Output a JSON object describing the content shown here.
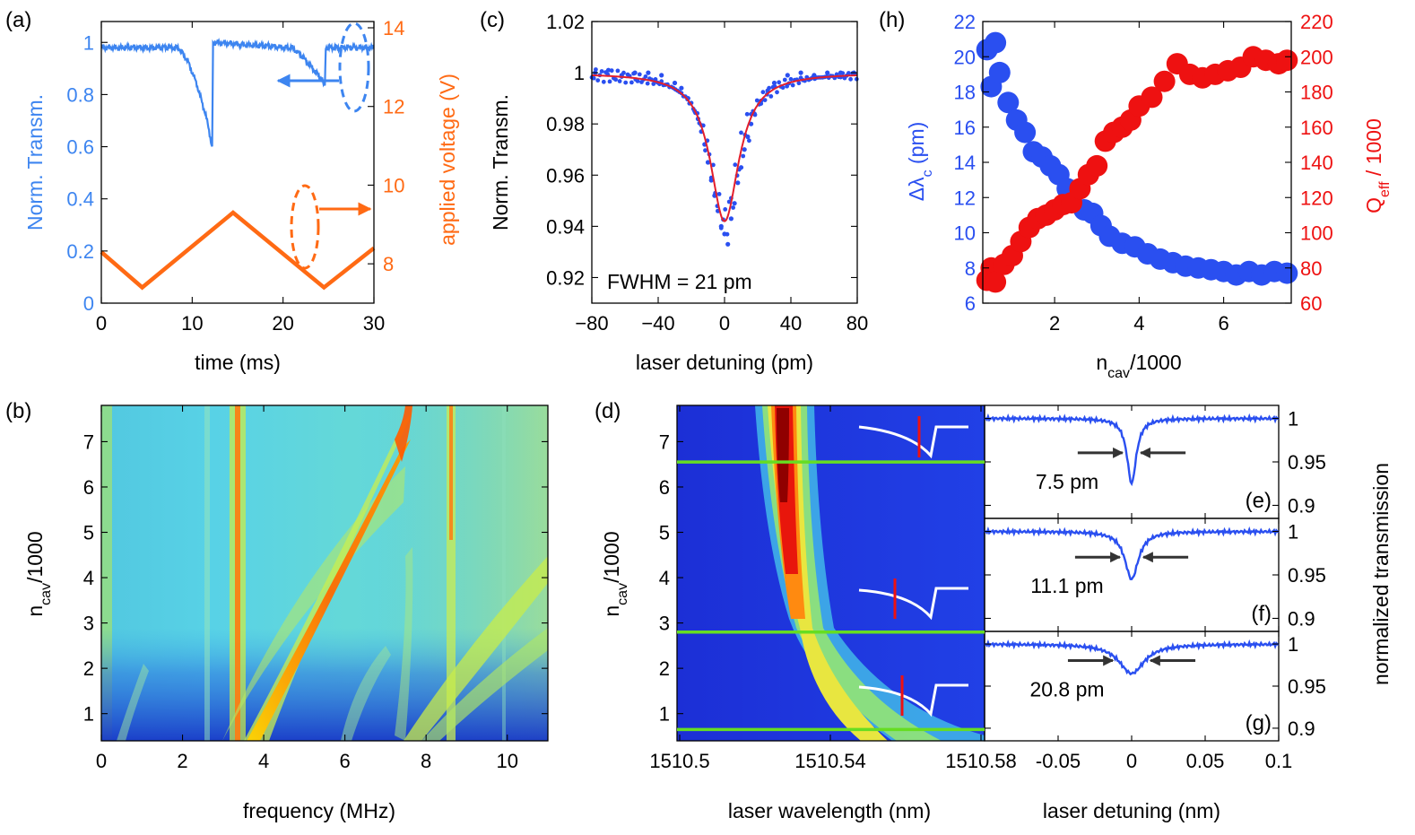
{
  "colors": {
    "blue": "#3d85f0",
    "orange": "#ff6a14",
    "dotBlue": "#2a4ff0",
    "red": "#ee1111",
    "fit": "#e31e2c",
    "green": "#66dd22",
    "gray": "#333333"
  },
  "chart_data": [
    {
      "id": "a",
      "type": "line",
      "panel_label": "(a)",
      "xlabel": "time (ms)",
      "ylabel": "Norm. Transm.",
      "y2label": "applied voltage (V)",
      "xlim": [
        0,
        30
      ],
      "ylim": [
        0,
        1.08
      ],
      "y2lim": [
        7,
        14
      ],
      "xticks": [
        "0",
        "10",
        "20",
        "30"
      ],
      "yticks": [
        "0",
        "0.2",
        "0.4",
        "0.6",
        "0.8",
        "1"
      ],
      "y2ticks": [
        "8",
        "10",
        "12",
        "14"
      ],
      "series": [
        {
          "name": "Norm. Transm.",
          "axis": "left",
          "color": "blue",
          "x": [
            0,
            8.5,
            9.5,
            10.5,
            11.5,
            12.2,
            12.3,
            20.5,
            21,
            22,
            23,
            24,
            24.6,
            24.7,
            30
          ],
          "y": [
            0.98,
            0.98,
            0.93,
            0.84,
            0.72,
            0.6,
            1.0,
            0.98,
            0.98,
            0.95,
            0.91,
            0.87,
            0.84,
            0.98,
            0.98
          ]
        },
        {
          "name": "applied voltage",
          "axis": "right",
          "color": "orange",
          "x": [
            0,
            4.5,
            14.5,
            24.5,
            30
          ],
          "y": [
            8.3,
            7.4,
            9.3,
            7.4,
            8.4
          ]
        }
      ]
    },
    {
      "id": "c",
      "type": "scatter",
      "panel_label": "(c)",
      "xlabel": "laser detuning (pm)",
      "ylabel": "Norm. Transm.",
      "xlim": [
        -80,
        80
      ],
      "ylim": [
        0.91,
        1.02
      ],
      "xticks": [
        "−80",
        "−40",
        "0",
        "40",
        "80"
      ],
      "yticks": [
        "0.92",
        "0.94",
        "0.96",
        "0.98",
        "1",
        "1.02"
      ],
      "annotation": "FWHM = 21 pm",
      "fit": {
        "center": 0,
        "depth": 0.058,
        "fwhm": 21,
        "baseline": 1.0
      },
      "points": [
        [
          -78,
          1.0
        ],
        [
          -70,
          1.001
        ],
        [
          -62,
          0.999
        ],
        [
          -54,
          1.0
        ],
        [
          -46,
          1.0
        ],
        [
          -38,
          0.999
        ],
        [
          -30,
          0.996
        ],
        [
          -26,
          0.994
        ],
        [
          -22,
          0.99
        ],
        [
          -18,
          0.985
        ],
        [
          -16,
          0.982
        ],
        [
          -14,
          0.977
        ],
        [
          -12,
          0.972
        ],
        [
          -10,
          0.965
        ],
        [
          -8,
          0.958
        ],
        [
          -6,
          0.952
        ],
        [
          -4,
          0.946
        ],
        [
          -2,
          0.94
        ],
        [
          0,
          0.937
        ],
        [
          2,
          0.933
        ],
        [
          4,
          0.943
        ],
        [
          6,
          0.949
        ],
        [
          8,
          0.957
        ],
        [
          10,
          0.963
        ],
        [
          12,
          0.97
        ],
        [
          14,
          0.975
        ],
        [
          16,
          0.98
        ],
        [
          18,
          0.984
        ],
        [
          22,
          0.989
        ],
        [
          26,
          0.993
        ],
        [
          30,
          0.996
        ],
        [
          38,
          0.999
        ],
        [
          46,
          1.0
        ],
        [
          54,
          0.999
        ],
        [
          62,
          1.0
        ],
        [
          70,
          1.0
        ],
        [
          78,
          1.0
        ]
      ]
    },
    {
      "id": "h",
      "type": "scatter",
      "panel_label": "(h)",
      "xlabel": "n",
      "xlabel_sub": "cav",
      "xlabel_suffix": "/1000",
      "ylabel": "Δλ",
      "ylabel_sub": "c",
      "ylabel_suffix": " (pm)",
      "y2label": "Q",
      "y2label_sub": "eff",
      "y2label_suffix": " / 1000",
      "xlim": [
        0.3,
        7.6
      ],
      "ylim": [
        6,
        22
      ],
      "y2lim": [
        60,
        220
      ],
      "xticks": [
        {
          "v": 2,
          "t": "2"
        },
        {
          "v": 4,
          "t": "4"
        },
        {
          "v": 6,
          "t": "6"
        }
      ],
      "yticks": [
        "6",
        "8",
        "10",
        "12",
        "14",
        "16",
        "18",
        "20",
        "22"
      ],
      "y2ticks": [
        "60",
        "80",
        "100",
        "120",
        "140",
        "160",
        "180",
        "200",
        "220"
      ],
      "series": [
        {
          "name": "Δλc",
          "axis": "left",
          "color": "dotBlue",
          "x": [
            0.4,
            0.5,
            0.6,
            0.7,
            0.9,
            1.1,
            1.3,
            1.5,
            1.7,
            1.9,
            2.1,
            2.3,
            2.5,
            2.7,
            2.9,
            3.1,
            3.3,
            3.6,
            3.9,
            4.2,
            4.5,
            4.8,
            5.1,
            5.4,
            5.7,
            6.0,
            6.3,
            6.6,
            6.9,
            7.2,
            7.5
          ],
          "y": [
            20.4,
            18.3,
            20.8,
            19.1,
            17.4,
            16.4,
            15.7,
            14.6,
            14.3,
            13.8,
            13.3,
            12.5,
            12.4,
            11.3,
            11.1,
            10.4,
            9.8,
            9.4,
            9.2,
            8.8,
            8.5,
            8.3,
            8.1,
            8.0,
            7.9,
            7.8,
            7.6,
            7.8,
            7.6,
            7.8,
            7.7
          ]
        },
        {
          "name": "Qeff",
          "axis": "right",
          "color": "red",
          "x": [
            0.4,
            0.5,
            0.6,
            0.8,
            1.0,
            1.2,
            1.4,
            1.6,
            1.8,
            2.0,
            2.2,
            2.4,
            2.6,
            2.8,
            3.0,
            3.2,
            3.4,
            3.6,
            3.8,
            4.0,
            4.3,
            4.6,
            4.9,
            5.2,
            5.5,
            5.8,
            6.1,
            6.4,
            6.7,
            7.0,
            7.3,
            7.5
          ],
          "y": [
            73,
            80,
            72,
            82,
            87,
            95,
            103,
            108,
            110,
            113,
            116,
            117,
            125,
            133,
            138,
            152,
            157,
            160,
            164,
            172,
            177,
            186,
            196,
            190,
            188,
            190,
            192,
            194,
            200,
            198,
            196,
            198
          ]
        }
      ]
    },
    {
      "id": "b",
      "type": "heatmap",
      "panel_label": "(b)",
      "xlabel": "frequency (MHz)",
      "ylabel": "n",
      "ylabel_sub": "cav",
      "ylabel_suffix": "/1000",
      "xlim": [
        0,
        11
      ],
      "ylim": [
        0.4,
        7.8
      ],
      "xticks": [
        "0",
        "2",
        "4",
        "6",
        "8",
        "10"
      ],
      "yticks": [
        "1",
        "2",
        "3",
        "4",
        "5",
        "6",
        "7"
      ]
    },
    {
      "id": "d",
      "type": "heatmap",
      "panel_label": "(d)",
      "xlabel": "laser wavelength (nm)",
      "ylabel": "n",
      "ylabel_sub": "cav",
      "ylabel_suffix": "/1000",
      "xlim": [
        1510.5,
        1510.58
      ],
      "ylim": [
        0.4,
        7.8
      ],
      "xticks": [
        "1510.5",
        "1510.54",
        "1510.58"
      ],
      "yticks": [
        "1",
        "2",
        "3",
        "4",
        "5",
        "6",
        "7"
      ],
      "guide_lines_ncav": [
        6.55,
        2.8,
        0.65
      ]
    },
    {
      "id": "efg",
      "type": "line",
      "xlabel": "laser detuning (nm)",
      "y2label": "normalized transmission",
      "xlim": [
        -0.1,
        0.1
      ],
      "xticks": [
        "-0.05",
        "0",
        "0.05",
        "0.1"
      ],
      "yticks_each": [
        "1",
        "0.95",
        "0.9"
      ],
      "subpanels": [
        {
          "label": "(e)",
          "fwhm_label": "7.5 pm",
          "fwhm_nm": 0.0075,
          "depth": 0.075
        },
        {
          "label": "(f)",
          "fwhm_label": "11.1 pm",
          "fwhm_nm": 0.0111,
          "depth": 0.055
        },
        {
          "label": "(g)",
          "fwhm_label": "20.8 pm",
          "fwhm_nm": 0.0208,
          "depth": 0.035
        }
      ]
    }
  ]
}
